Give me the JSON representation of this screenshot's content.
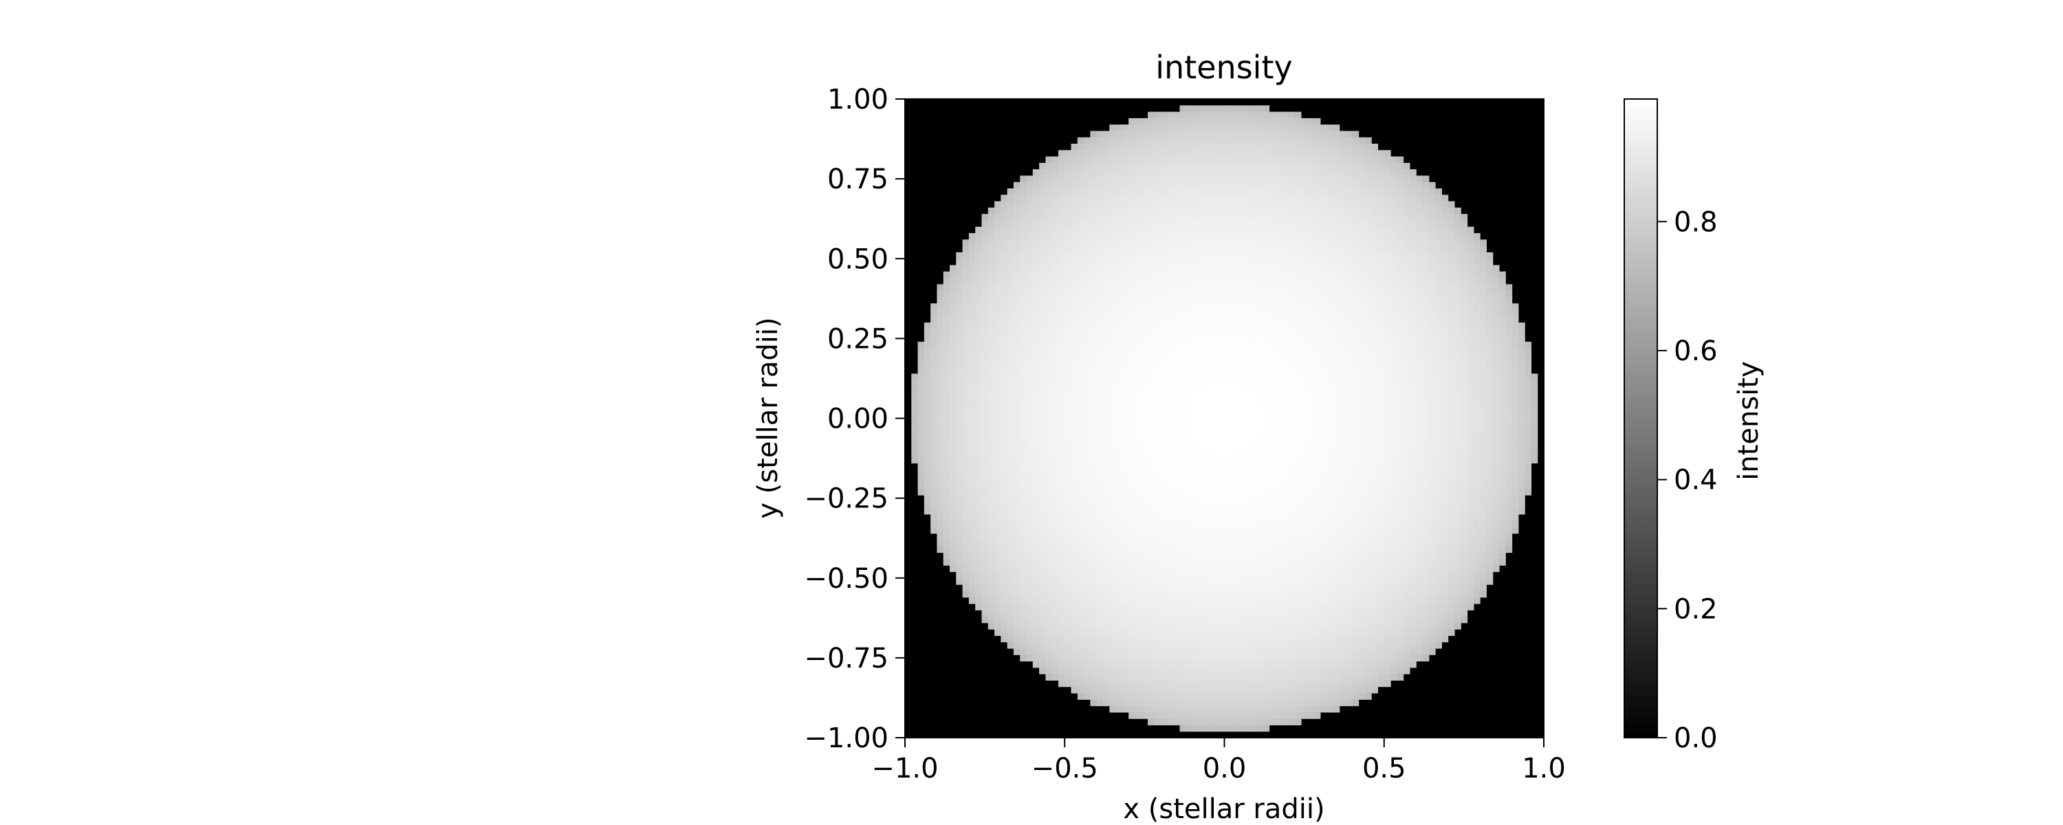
{
  "chart_data": {
    "type": "heatmap",
    "title": "intensity",
    "xlabel": "x (stellar radii)",
    "ylabel": "y (stellar radii)",
    "xlim": [
      -1.0,
      1.0
    ],
    "ylim": [
      -1.0,
      1.0
    ],
    "x_ticks": [
      -1.0,
      -0.5,
      0.0,
      0.5,
      1.0
    ],
    "x_tick_labels": [
      "−1.0",
      "−0.5",
      "0.0",
      "0.5",
      "1.0"
    ],
    "y_ticks": [
      1.0,
      0.75,
      0.5,
      0.25,
      0.0,
      -0.25,
      -0.5,
      -0.75,
      -1.0
    ],
    "y_tick_labels": [
      "1.00",
      "0.75",
      "0.50",
      "0.25",
      "0.00",
      "−0.25",
      "−0.50",
      "−0.75",
      "−1.00"
    ],
    "colormap": "gray",
    "grid": false,
    "background_value": 0.0,
    "disk_center": [
      0.0,
      0.0
    ],
    "disk_radius": 0.98,
    "intensity_peak": 0.99,
    "intensity_limb": 0.72,
    "grid_resolution": 100,
    "colorbar": {
      "label": "intensity",
      "vmin": 0.0,
      "vmax": 0.99,
      "ticks": [
        0.0,
        0.2,
        0.4,
        0.6,
        0.8
      ],
      "tick_labels": [
        "0.0",
        "0.2",
        "0.4",
        "0.6",
        "0.8"
      ]
    }
  }
}
